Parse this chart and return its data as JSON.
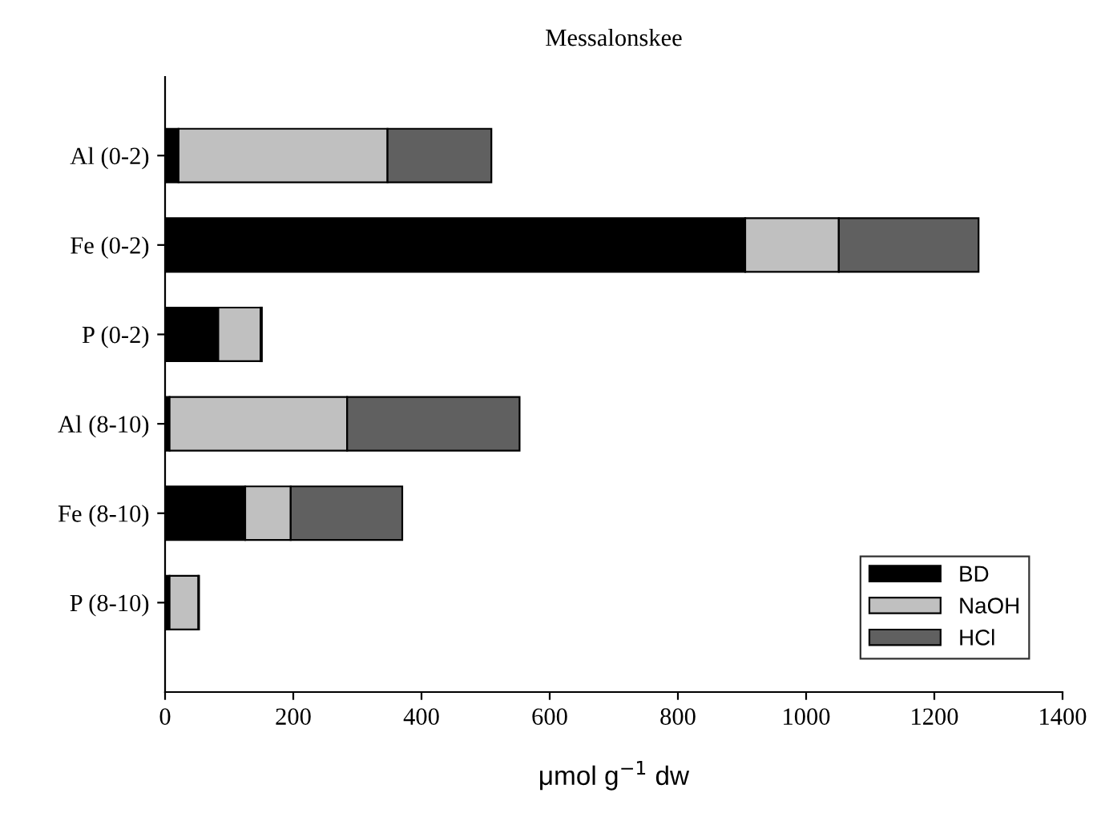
{
  "chart_data": {
    "type": "bar",
    "orientation": "horizontal",
    "stacked": true,
    "title": "Messalonskee",
    "xlabel": "μmol g$^{−1}$ dw",
    "categories": [
      "Al (0-2)",
      "Fe (0-2)",
      "P (0-2)",
      "Al (8-10)",
      "Fe (8-10)",
      "P (8-10)"
    ],
    "series": [
      {
        "name": "BD",
        "color": "#000000",
        "values": [
          21,
          905,
          83,
          7,
          125,
          7
        ]
      },
      {
        "name": "NaOH",
        "color": "#c0c0c0",
        "values": [
          326,
          146,
          66,
          277,
          71,
          45
        ]
      },
      {
        "name": "HCl",
        "color": "#606060",
        "values": [
          162,
          218,
          2,
          269,
          174,
          1
        ]
      }
    ],
    "xlim": [
      0,
      1400
    ],
    "xticks": [
      0,
      200,
      400,
      600,
      800,
      1000,
      1200,
      1400
    ],
    "grid": false,
    "legend": "bottom right"
  }
}
